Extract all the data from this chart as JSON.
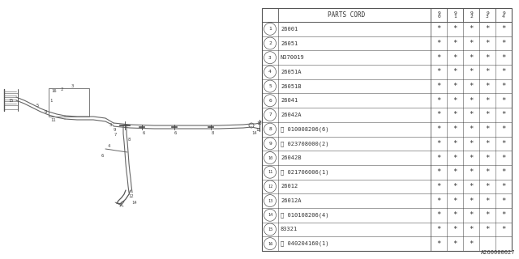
{
  "bg_color": "#ffffff",
  "line_color": "#555555",
  "text_color": "#333333",
  "col_header": "PARTS CORD",
  "year_cols": [
    "9\n0",
    "9\n1",
    "9\n2",
    "9\n3",
    "9\n4"
  ],
  "rows": [
    {
      "num": "1",
      "part": "26001",
      "stars": [
        true,
        true,
        true,
        true,
        true
      ]
    },
    {
      "num": "2",
      "part": "26051",
      "stars": [
        true,
        true,
        true,
        true,
        true
      ]
    },
    {
      "num": "3",
      "part": "N370019",
      "stars": [
        true,
        true,
        true,
        true,
        true
      ]
    },
    {
      "num": "4",
      "part": "26051A",
      "stars": [
        true,
        true,
        true,
        true,
        true
      ]
    },
    {
      "num": "5",
      "part": "26051B",
      "stars": [
        true,
        true,
        true,
        true,
        true
      ]
    },
    {
      "num": "6",
      "part": "26041",
      "stars": [
        true,
        true,
        true,
        true,
        true
      ]
    },
    {
      "num": "7",
      "part": "26042A",
      "stars": [
        true,
        true,
        true,
        true,
        true
      ]
    },
    {
      "num": "8",
      "part": "Ⓑ 010008206(6)",
      "stars": [
        true,
        true,
        true,
        true,
        true
      ]
    },
    {
      "num": "9",
      "part": "Ⓝ 023708000(2)",
      "stars": [
        true,
        true,
        true,
        true,
        true
      ]
    },
    {
      "num": "10",
      "part": "26042B",
      "stars": [
        true,
        true,
        true,
        true,
        true
      ]
    },
    {
      "num": "11",
      "part": "Ⓝ 021706006(1)",
      "stars": [
        true,
        true,
        true,
        true,
        true
      ]
    },
    {
      "num": "12",
      "part": "26012",
      "stars": [
        true,
        true,
        true,
        true,
        true
      ]
    },
    {
      "num": "13",
      "part": "26012A",
      "stars": [
        true,
        true,
        true,
        true,
        true
      ]
    },
    {
      "num": "14",
      "part": "Ⓑ 010108206(4)",
      "stars": [
        true,
        true,
        true,
        true,
        true
      ]
    },
    {
      "num": "15",
      "part": "83321",
      "stars": [
        true,
        true,
        true,
        true,
        true
      ]
    },
    {
      "num": "16",
      "part": "Ⓢ 040204160(1)",
      "stars": [
        true,
        true,
        true,
        false,
        false
      ]
    }
  ],
  "watermark": "A260000027"
}
